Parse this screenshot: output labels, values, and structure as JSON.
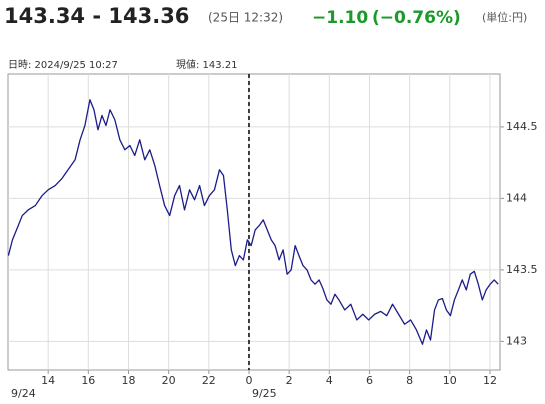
{
  "quote": {
    "price": "143.34 - 143.36",
    "time": "(25日 12:32)",
    "change": "−1.10",
    "change_pct": "(−0.76%)",
    "unit": "(単位:円)"
  },
  "info": {
    "datetime": "日時: 2024/9/25  10:27",
    "current": "現値: 143.21"
  },
  "chart_data": {
    "type": "line",
    "x": [
      12.02,
      12.22,
      12.51,
      12.71,
      13.01,
      13.36,
      13.7,
      14.0,
      14.35,
      14.69,
      14.99,
      15.34,
      15.59,
      15.83,
      16.08,
      16.28,
      16.48,
      16.68,
      16.88,
      17.08,
      17.32,
      17.57,
      17.82,
      18.07,
      18.31,
      18.56,
      18.81,
      19.06,
      19.31,
      19.55,
      19.8,
      20.05,
      20.3,
      20.54,
      20.79,
      21.04,
      21.29,
      21.54,
      21.78,
      22.03,
      22.28,
      22.53,
      22.73,
      22.92,
      23.12,
      23.32,
      23.52,
      23.72,
      23.92,
      24.11,
      24.31,
      24.51,
      24.71,
      24.91,
      25.11,
      25.3,
      25.5,
      25.7,
      25.9,
      26.1,
      26.3,
      26.49,
      26.69,
      26.89,
      27.09,
      27.29,
      27.49,
      27.68,
      27.88,
      28.08,
      28.28,
      28.48,
      28.77,
      29.07,
      29.37,
      29.67,
      29.96,
      30.26,
      30.56,
      30.86,
      31.15,
      31.45,
      31.75,
      32.05,
      32.34,
      32.64,
      32.84,
      33.04,
      33.24,
      33.43,
      33.63,
      33.83,
      34.03,
      34.23,
      34.43,
      34.62,
      34.82,
      35.02,
      35.22,
      35.42,
      35.62,
      35.81,
      36.01,
      36.21,
      36.41
    ],
    "values": [
      143.6,
      143.71,
      143.81,
      143.88,
      143.92,
      143.95,
      144.02,
      144.06,
      144.09,
      144.14,
      144.2,
      144.27,
      144.41,
      144.51,
      144.69,
      144.62,
      144.48,
      144.58,
      144.51,
      144.62,
      144.55,
      144.41,
      144.34,
      144.37,
      144.3,
      144.41,
      144.27,
      144.34,
      144.23,
      144.09,
      143.95,
      143.88,
      144.02,
      144.09,
      143.92,
      144.06,
      143.99,
      144.09,
      143.95,
      144.02,
      144.06,
      144.2,
      144.16,
      143.92,
      143.64,
      143.53,
      143.6,
      143.57,
      143.71,
      143.67,
      143.78,
      143.81,
      143.85,
      143.78,
      143.71,
      143.67,
      143.57,
      143.64,
      143.47,
      143.5,
      143.67,
      143.6,
      143.53,
      143.5,
      143.43,
      143.4,
      143.43,
      143.37,
      143.29,
      143.26,
      143.33,
      143.29,
      143.22,
      143.26,
      143.15,
      143.19,
      143.15,
      143.19,
      143.21,
      143.18,
      143.26,
      143.19,
      143.12,
      143.15,
      143.08,
      142.98,
      143.08,
      143.01,
      143.22,
      143.29,
      143.3,
      143.22,
      143.18,
      143.29,
      143.36,
      143.43,
      143.36,
      143.47,
      143.49,
      143.4,
      143.29,
      143.36,
      143.4,
      143.43,
      143.4
    ],
    "color": "#1c1c8a",
    "xlim": [
      12,
      36.5
    ],
    "xticks": [
      14,
      16,
      18,
      20,
      22,
      {
        "value": 24,
        "label": "0"
      },
      {
        "value": 26,
        "label": "2"
      },
      {
        "value": 28,
        "label": "4"
      },
      {
        "value": 30,
        "label": "6"
      },
      {
        "value": 32,
        "label": "8"
      },
      {
        "value": 34,
        "label": "10"
      },
      {
        "value": 36,
        "label": "12"
      }
    ],
    "date_labels": [
      {
        "value": 12,
        "label": "9/24"
      },
      {
        "value": 24,
        "label": "9/25"
      }
    ],
    "day_divider": 24,
    "ylim": [
      142.8,
      144.87
    ],
    "yticks": [
      143,
      143.5,
      144,
      144.5
    ],
    "grid": true
  }
}
